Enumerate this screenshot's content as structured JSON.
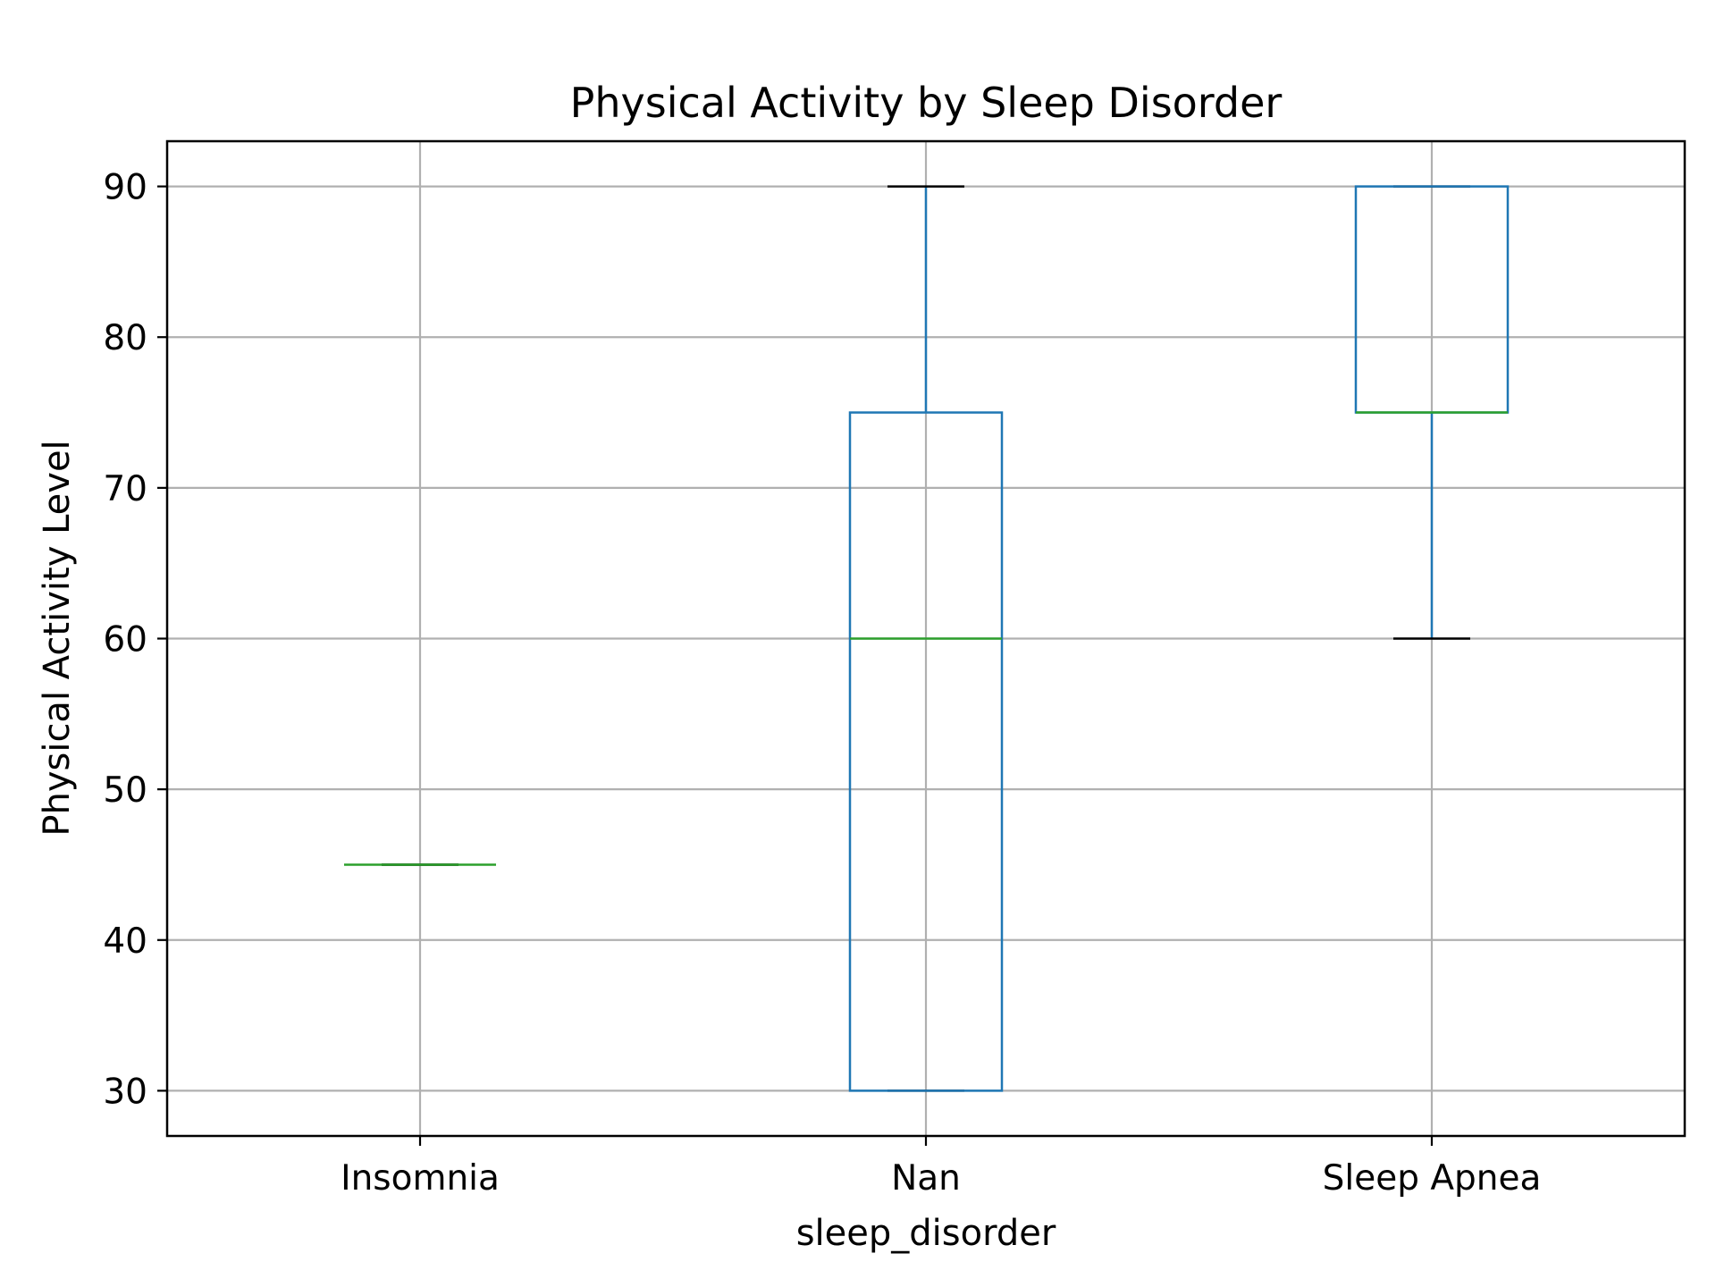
{
  "chart_data": {
    "type": "box",
    "title": "Physical Activity by Sleep Disorder",
    "xlabel": "sleep_disorder",
    "ylabel": "Physical Activity Level",
    "categories": [
      "Insomnia",
      "Nan",
      "Sleep Apnea"
    ],
    "boxes": [
      {
        "category": "Insomnia",
        "whisker_low": 45,
        "q1": 45,
        "median": 45,
        "q3": 45,
        "whisker_high": 45
      },
      {
        "category": "Nan",
        "whisker_low": 30,
        "q1": 30,
        "median": 60,
        "q3": 75,
        "whisker_high": 90
      },
      {
        "category": "Sleep Apnea",
        "whisker_low": 60,
        "q1": 75,
        "median": 75,
        "q3": 90,
        "whisker_high": 90
      }
    ],
    "yticks": [
      30,
      40,
      50,
      60,
      70,
      80,
      90
    ],
    "ylim": [
      27,
      93
    ],
    "grid": true,
    "colors": {
      "box": "#1f77b4",
      "median": "#2ca02c",
      "cap": "#000000",
      "grid": "#b0b0b0"
    }
  }
}
